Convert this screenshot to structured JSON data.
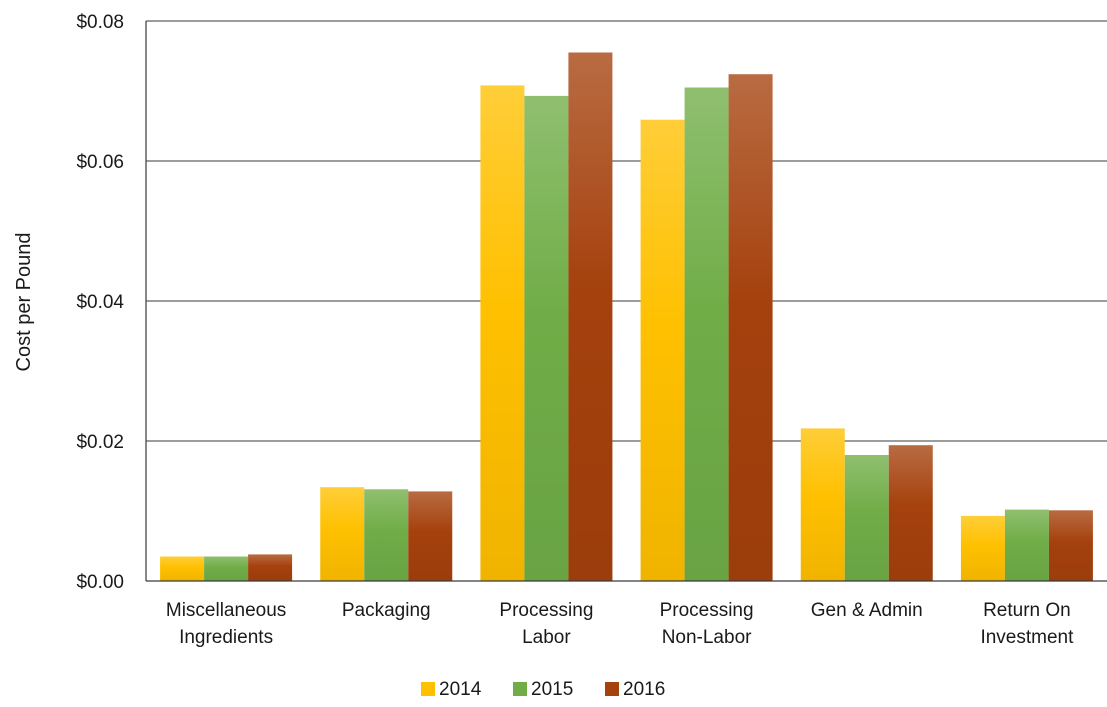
{
  "chart_data": {
    "type": "bar",
    "title": "",
    "xlabel": "",
    "ylabel": "Cost per Pound",
    "ylim": [
      0,
      0.08
    ],
    "yticks": [
      "$0.00",
      "$0.02",
      "$0.04",
      "$0.06",
      "$0.08"
    ],
    "ytick_values": [
      0,
      0.02,
      0.04,
      0.06,
      0.08
    ],
    "grid": true,
    "legend_position": "bottom",
    "categories": [
      [
        "Miscellaneous",
        "Ingredients"
      ],
      [
        "Packaging"
      ],
      [
        "Processing",
        "Labor"
      ],
      [
        "Processing",
        "Non-Labor"
      ],
      [
        "Gen & Admin"
      ],
      [
        "Return On",
        "Investment"
      ]
    ],
    "series": [
      {
        "name": "2014",
        "color": "#FFC000",
        "values": [
          0.0035,
          0.0134,
          0.0708,
          0.0659,
          0.0218,
          0.0093
        ]
      },
      {
        "name": "2015",
        "color": "#70AD47",
        "values": [
          0.0035,
          0.0131,
          0.0693,
          0.0705,
          0.018,
          0.0102
        ]
      },
      {
        "name": "2016",
        "color": "#A5410D",
        "values": [
          0.0038,
          0.0128,
          0.0755,
          0.0724,
          0.0194,
          0.0101
        ]
      }
    ]
  }
}
